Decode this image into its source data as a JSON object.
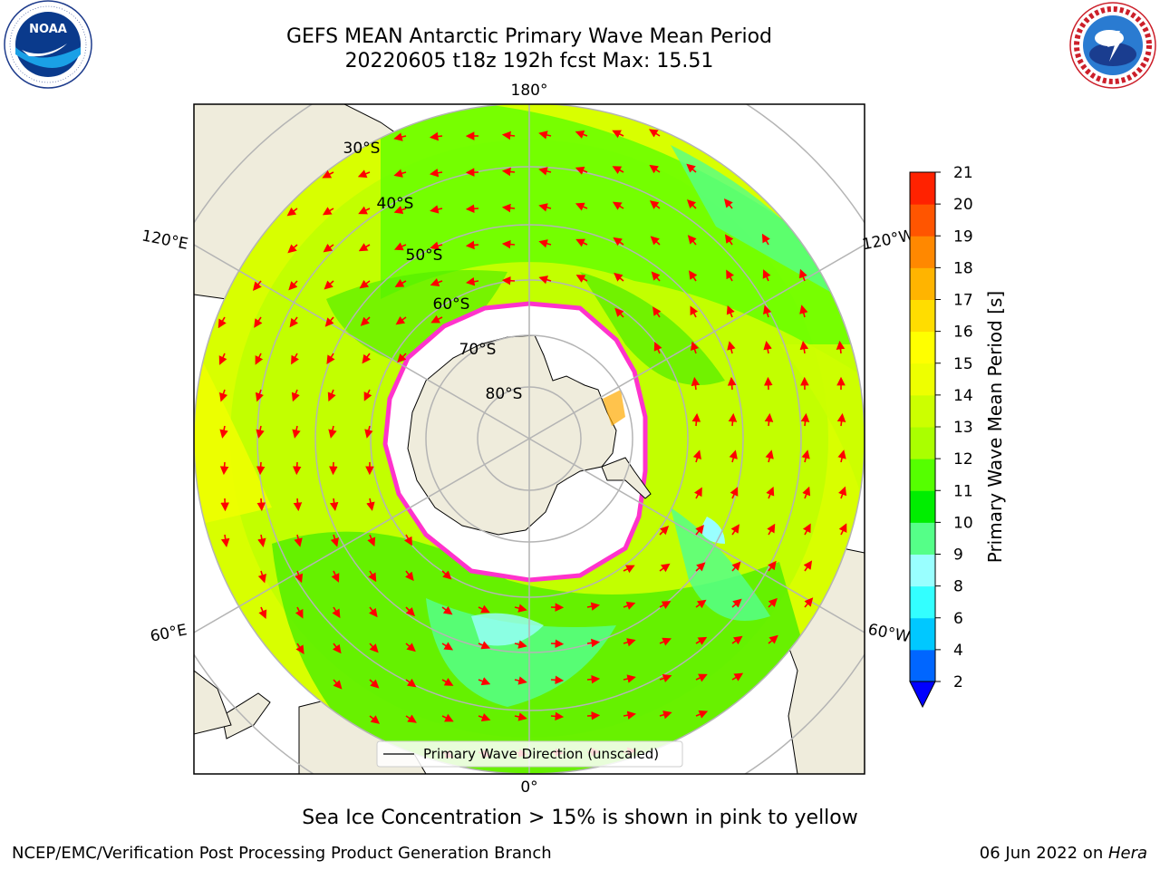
{
  "header": {
    "title_line1": "GEFS MEAN Antarctic Primary Wave Mean Period",
    "title_line2": "20220605 t18z 192h fcst   Max: 15.51"
  },
  "map": {
    "lon_labels": {
      "top": "180°",
      "bottom": "0°",
      "upper_left": "120°E",
      "upper_right": "120°W",
      "lower_left": "60°E",
      "lower_right": "60°W"
    },
    "lat_labels": [
      "30°S",
      "40°S",
      "50°S",
      "60°S",
      "70°S",
      "80°S"
    ],
    "legend_label": "Primary Wave Direction (unscaled)",
    "colors": {
      "land": "#efecdc",
      "ice": "#ffffff",
      "ice_edge": "#ff33cc",
      "arrow": "#ff0000",
      "grid": "#b4b4b4"
    }
  },
  "colorbar": {
    "label": "Primary Wave Mean Period [s]",
    "ticks": [
      "2",
      "4",
      "6",
      "8",
      "9",
      "10",
      "11",
      "12",
      "13",
      "14",
      "15",
      "16",
      "17",
      "18",
      "19",
      "20",
      "21"
    ],
    "under_color": "#0000ff",
    "colors": [
      "#0066ff",
      "#00c8ff",
      "#33ffff",
      "#99ffff",
      "#55ff88",
      "#00ee00",
      "#55ff00",
      "#aaff00",
      "#ccff00",
      "#eeff00",
      "#ffff00",
      "#ffdd00",
      "#ffb400",
      "#ff8800",
      "#ff5500",
      "#ff2200"
    ]
  },
  "captions": {
    "ice": "Sea Ice Concentration > 15% is shown in pink to yellow",
    "footer_left": "NCEP/EMC/Verification Post Processing Product Generation Branch",
    "footer_right_date": "06 Jun 2022 on ",
    "footer_right_host": "Hera"
  }
}
